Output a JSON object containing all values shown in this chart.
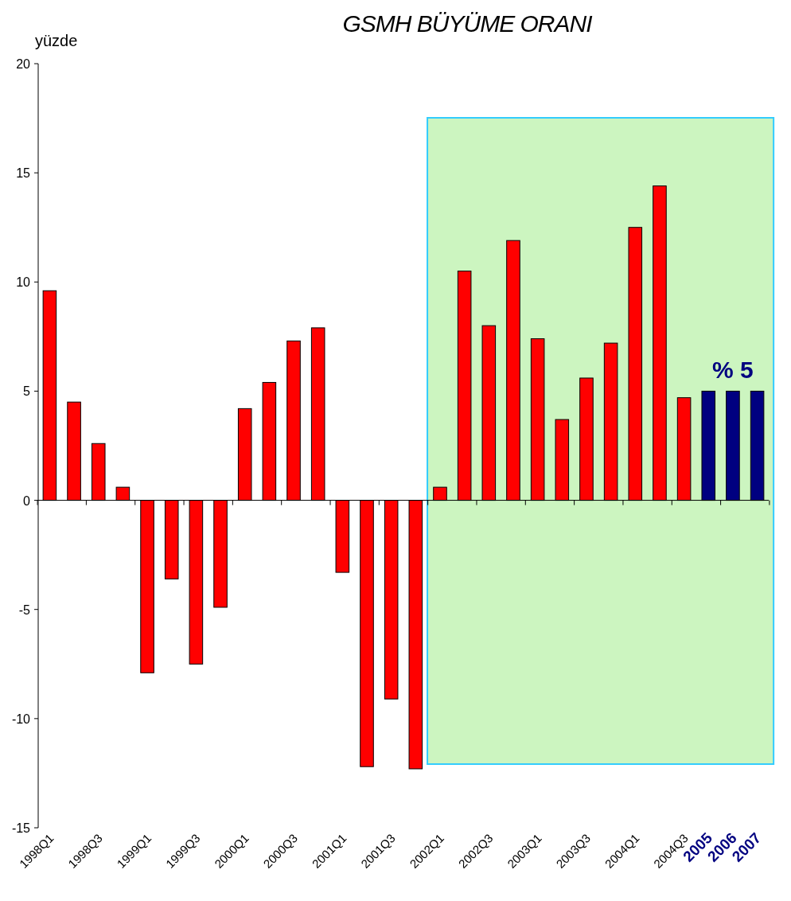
{
  "chart_data": {
    "type": "bar",
    "title": "GSMH BÜYÜME ORANI",
    "ylabel": "yüzde",
    "categories": [
      "1998Q1",
      null,
      "1998Q3",
      null,
      "1999Q1",
      null,
      "1999Q3",
      null,
      "2000Q1",
      null,
      "2000Q3",
      null,
      "2001Q1",
      null,
      "2001Q3",
      null,
      "2002Q1",
      null,
      "2002Q3",
      null,
      "2003Q1",
      null,
      "2003Q3",
      null,
      "2004Q1",
      null,
      "2004Q3",
      "2005",
      "2006",
      "2007"
    ],
    "values": [
      9.6,
      4.5,
      2.6,
      0.6,
      -7.9,
      -3.6,
      -7.5,
      -4.9,
      4.2,
      5.4,
      7.3,
      7.9,
      -3.3,
      -12.2,
      -9.1,
      -12.3,
      0.6,
      10.5,
      8.0,
      11.9,
      7.4,
      3.7,
      5.6,
      7.2,
      12.5,
      14.4,
      4.7,
      5,
      5,
      5
    ],
    "colors": [
      "#ff0000",
      "#ff0000",
      "#ff0000",
      "#ff0000",
      "#ff0000",
      "#ff0000",
      "#ff0000",
      "#ff0000",
      "#ff0000",
      "#ff0000",
      "#ff0000",
      "#ff0000",
      "#ff0000",
      "#ff0000",
      "#ff0000",
      "#ff0000",
      "#ff0000",
      "#ff0000",
      "#ff0000",
      "#ff0000",
      "#ff0000",
      "#ff0000",
      "#ff0000",
      "#ff0000",
      "#ff0000",
      "#ff0000",
      "#ff0000",
      "#000080",
      "#000080",
      "#000080"
    ],
    "ylim": [
      -15,
      20
    ],
    "yticks": [
      -15,
      -10,
      -5,
      0,
      5,
      10,
      15,
      20
    ],
    "bands": [
      {
        "axis": "x",
        "from": "2002Q1",
        "to": "2007",
        "color": "#ccf5c0"
      }
    ],
    "annotations": [
      {
        "text": "% 5",
        "x": "2006",
        "y": 5
      }
    ]
  }
}
